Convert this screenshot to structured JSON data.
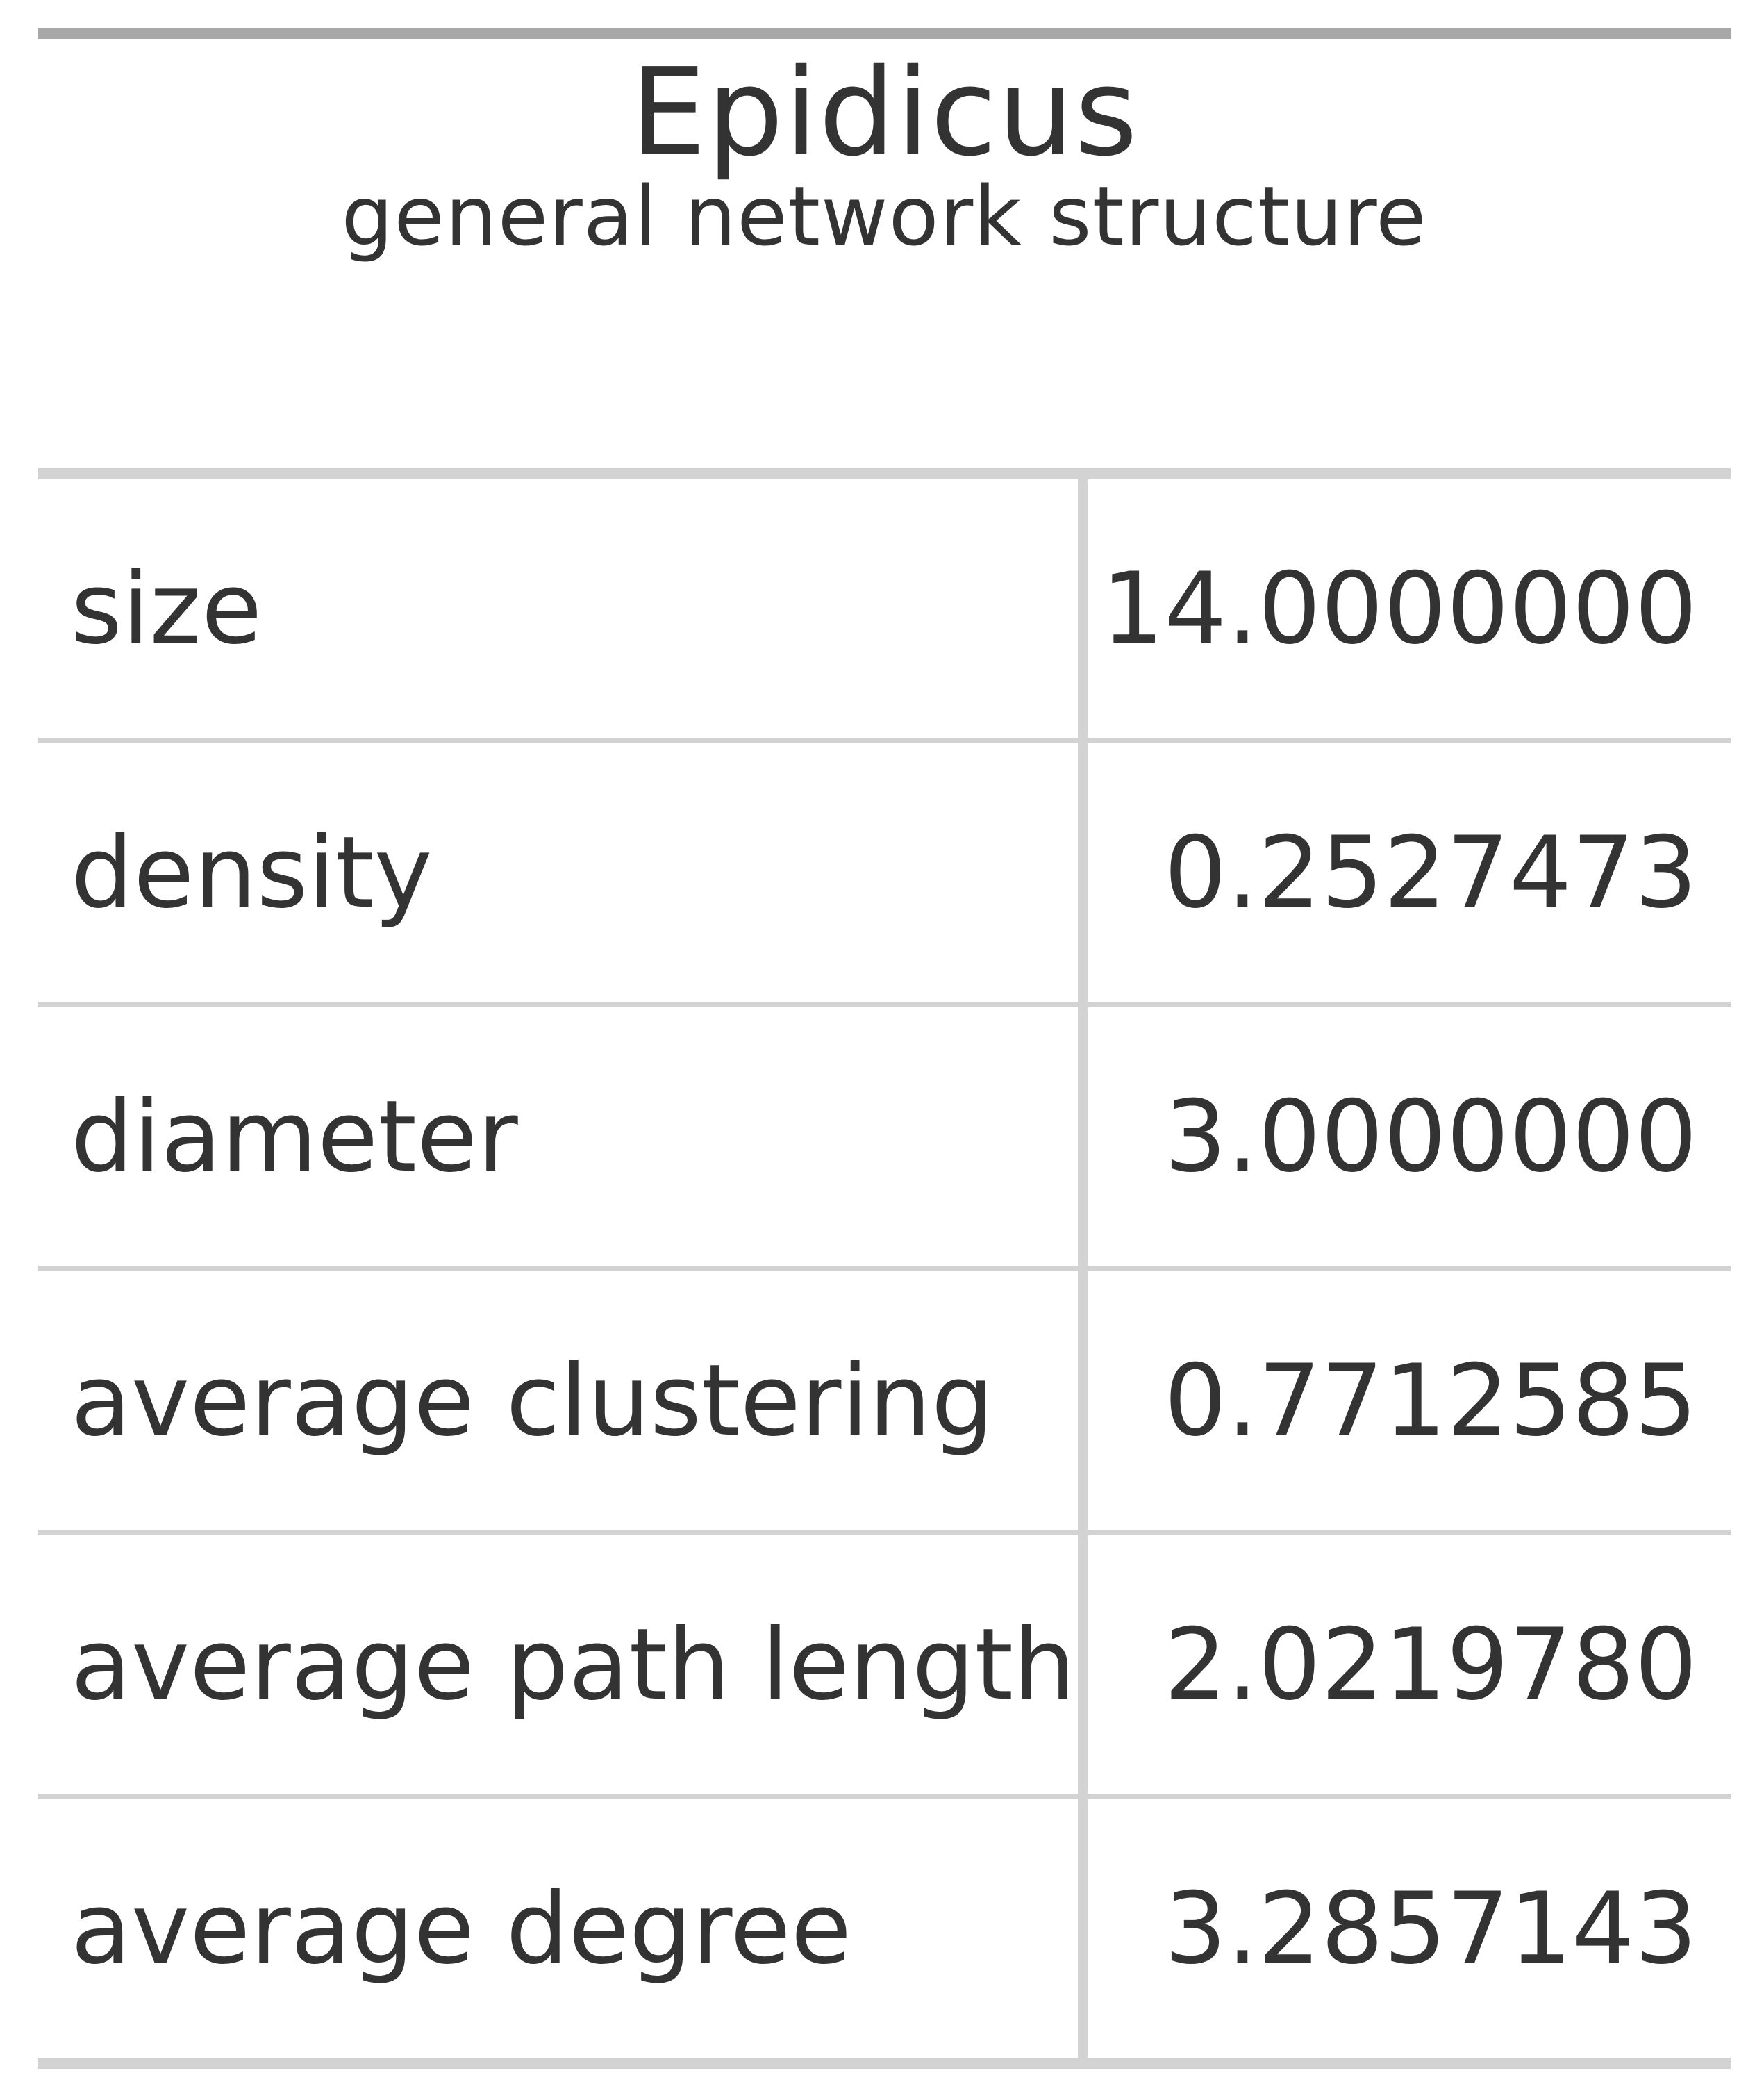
{
  "table": {
    "title": "Epidicus",
    "subtitle": "general network structure",
    "rows": [
      {
        "label": "size",
        "value": "14.0000000"
      },
      {
        "label": "density",
        "value": "0.2527473"
      },
      {
        "label": "diameter",
        "value": "3.0000000"
      },
      {
        "label": "average clustering",
        "value": "0.7712585"
      },
      {
        "label": "average path length",
        "value": "2.0219780"
      },
      {
        "label": "average degree",
        "value": "3.2857143"
      }
    ]
  }
}
